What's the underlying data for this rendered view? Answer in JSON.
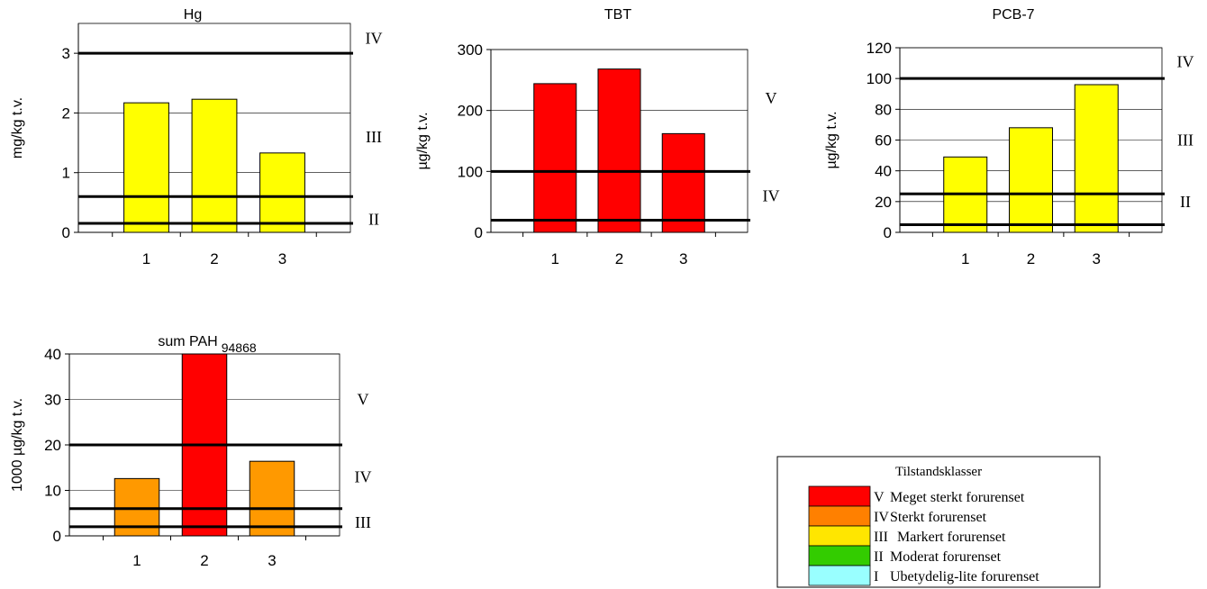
{
  "chart_data": [
    {
      "type": "bar",
      "title": "Hg",
      "ylabel": "mg/kg t.v.",
      "categories": [
        "1",
        "2",
        "3"
      ],
      "values": [
        2.17,
        2.23,
        1.33
      ],
      "bar_colors": [
        "#ffff00",
        "#ffff00",
        "#ffff00"
      ],
      "ylim": [
        0,
        3.5
      ],
      "yticks": [
        0,
        1,
        2,
        3
      ],
      "threshold_lines": [
        0.15,
        0.6,
        3
      ],
      "class_labels": [
        {
          "label": "II",
          "y": 0.22
        },
        {
          "label": "III",
          "y": 1.6
        },
        {
          "label": "IV",
          "y": 3.25
        }
      ]
    },
    {
      "type": "bar",
      "title": "TBT",
      "ylabel": "µg/kg t.v.",
      "categories": [
        "1",
        "2",
        "3"
      ],
      "values": [
        244,
        268,
        162
      ],
      "bar_colors": [
        "#ff0000",
        "#ff0000",
        "#ff0000"
      ],
      "ylim": [
        0,
        300
      ],
      "yticks": [
        0,
        100,
        200,
        300
      ],
      "threshold_lines": [
        20,
        100
      ],
      "class_labels": [
        {
          "label": "IV",
          "y": 60
        },
        {
          "label": "V",
          "y": 220
        }
      ]
    },
    {
      "type": "bar",
      "title": "PCB-7",
      "ylabel": "µg/kg t.v.",
      "categories": [
        "1",
        "2",
        "3"
      ],
      "values": [
        49,
        68,
        96
      ],
      "bar_colors": [
        "#ffff00",
        "#ffff00",
        "#ffff00"
      ],
      "ylim": [
        0,
        120
      ],
      "yticks": [
        0,
        20,
        40,
        60,
        80,
        100,
        120
      ],
      "threshold_lines": [
        5,
        25,
        100
      ],
      "class_labels": [
        {
          "label": "II",
          "y": 20
        },
        {
          "label": "III",
          "y": 60
        },
        {
          "label": "IV",
          "y": 111
        }
      ]
    },
    {
      "type": "bar",
      "title": "sum PAH",
      "title_sub": "94868",
      "ylabel": "1000 µg/kg t.v.",
      "categories": [
        "1",
        "2",
        "3"
      ],
      "values": [
        12.6,
        40.6,
        16.4
      ],
      "bar_colors": [
        "#ff9900",
        "#ff0000",
        "#ff9900"
      ],
      "ylim": [
        0,
        40
      ],
      "yticks": [
        0,
        10,
        20,
        30,
        40
      ],
      "threshold_lines": [
        2,
        6,
        20
      ],
      "class_labels": [
        {
          "label": "III",
          "y": 3
        },
        {
          "label": "IV",
          "y": 13
        },
        {
          "label": "V",
          "y": 30
        }
      ]
    }
  ],
  "legend": {
    "title": "Tilstandsklasser",
    "items": [
      {
        "code": "V",
        "text": "Meget sterkt forurenset",
        "color": "#ff0000"
      },
      {
        "code": "IV",
        "text": "Sterkt forurenset",
        "color": "#ff8000"
      },
      {
        "code": "III",
        "text": "Markert forurenset",
        "color": "#ffe600"
      },
      {
        "code": "II",
        "text": "Moderat forurenset",
        "color": "#33cc00"
      },
      {
        "code": "I",
        "text": "Ubetydelig-lite forurenset",
        "color": "#99ffff"
      }
    ]
  }
}
